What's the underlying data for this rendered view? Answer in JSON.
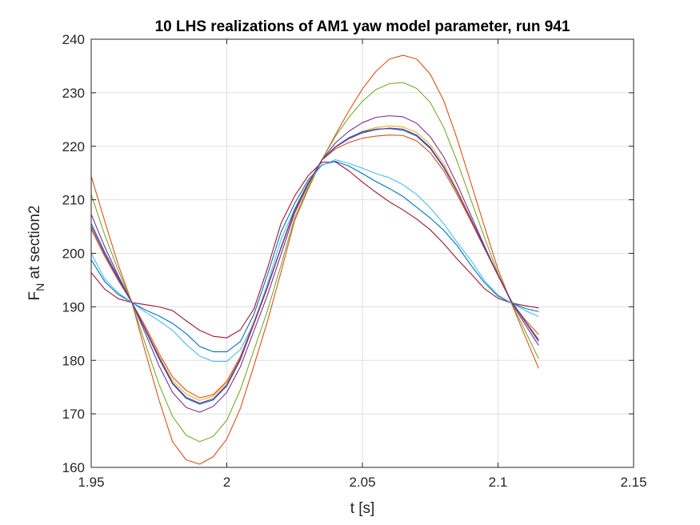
{
  "chart_data": {
    "type": "line",
    "title": "10 LHS realizations of AM1 yaw model parameter, run 941",
    "xlabel": "t [s]",
    "ylabel_main": "F",
    "ylabel_sub": "N",
    "ylabel_rest": " at section2",
    "xlim": [
      1.95,
      2.15
    ],
    "ylim": [
      160,
      240
    ],
    "xticks": [
      1.95,
      2.0,
      2.05,
      2.1,
      2.15
    ],
    "xtick_labels": [
      "1.95",
      "2",
      "2.05",
      "2.1",
      "2.15"
    ],
    "yticks": [
      160,
      170,
      180,
      190,
      200,
      210,
      220,
      230,
      240
    ],
    "ytick_labels": [
      "160",
      "170",
      "180",
      "190",
      "200",
      "210",
      "220",
      "230",
      "240"
    ],
    "grid": true,
    "legend": "none",
    "series": [
      {
        "color": "#D95319",
        "x": [
          1.95,
          1.955,
          1.96,
          1.965,
          1.97,
          1.975,
          1.98,
          1.985,
          1.99,
          1.995,
          2.0,
          2.005,
          2.01,
          2.015,
          2.02,
          2.025,
          2.03,
          2.035,
          2.04,
          2.045,
          2.05,
          2.055,
          2.06,
          2.065,
          2.07,
          2.075,
          2.08,
          2.085,
          2.09,
          2.095,
          2.1,
          2.105,
          2.11,
          2.115
        ],
        "y": [
          214.4,
          206.0,
          197.8,
          190.8,
          181.5,
          172.6,
          164.8,
          161.4,
          160.6,
          162.0,
          165.3,
          171.0,
          179.0,
          187.3,
          196.5,
          206.1,
          212.0,
          217.4,
          222.1,
          226.6,
          230.7,
          234.0,
          236.3,
          237.0,
          236.3,
          233.5,
          228.5,
          221.3,
          213.2,
          205.0,
          197.0,
          190.6,
          184.5,
          178.5
        ]
      },
      {
        "color": "#77AC30",
        "x": [
          1.95,
          1.955,
          1.96,
          1.965,
          1.97,
          1.975,
          1.98,
          1.985,
          1.99,
          1.995,
          2.0,
          2.005,
          2.01,
          2.015,
          2.02,
          2.025,
          2.03,
          2.035,
          2.04,
          2.045,
          2.05,
          2.055,
          2.06,
          2.065,
          2.07,
          2.075,
          2.08,
          2.085,
          2.09,
          2.095,
          2.1,
          2.105,
          2.11,
          2.115
        ],
        "y": [
          211.0,
          203.4,
          196.8,
          190.8,
          183.0,
          175.5,
          169.5,
          166.0,
          164.8,
          165.8,
          168.8,
          174.5,
          181.9,
          189.3,
          197.8,
          206.6,
          212.3,
          217.4,
          221.8,
          225.4,
          228.4,
          230.6,
          231.7,
          231.9,
          230.8,
          228.2,
          223.5,
          217.1,
          210.0,
          203.0,
          196.2,
          190.7,
          185.5,
          180.3
        ]
      },
      {
        "color": "#7E2F8E",
        "x": [
          1.95,
          1.955,
          1.96,
          1.965,
          1.97,
          1.975,
          1.98,
          1.985,
          1.99,
          1.995,
          2.0,
          2.005,
          2.01,
          2.015,
          2.02,
          2.025,
          2.03,
          2.035,
          2.04,
          2.045,
          2.05,
          2.055,
          2.06,
          2.065,
          2.07,
          2.075,
          2.08,
          2.085,
          2.09,
          2.095,
          2.1,
          2.105,
          2.11,
          2.115
        ],
        "y": [
          207.3,
          201.2,
          195.8,
          190.8,
          185.0,
          179.0,
          174.0,
          171.2,
          170.3,
          171.4,
          174.0,
          178.8,
          185.5,
          192.2,
          199.8,
          207.5,
          212.8,
          217.4,
          220.6,
          222.8,
          224.4,
          225.4,
          225.7,
          225.5,
          224.3,
          221.8,
          218.0,
          212.8,
          207.1,
          201.4,
          195.9,
          190.8,
          186.7,
          182.8
        ]
      },
      {
        "color": "#A2142F",
        "x": [
          1.95,
          1.955,
          1.96,
          1.965,
          1.97,
          1.975,
          1.98,
          1.985,
          1.99,
          1.995,
          2.0,
          2.005,
          2.01,
          2.015,
          2.02,
          2.025,
          2.03,
          2.035,
          2.04,
          2.045,
          2.05,
          2.055,
          2.06,
          2.065,
          2.07,
          2.075,
          2.08,
          2.085,
          2.09,
          2.095,
          2.1,
          2.105,
          2.11,
          2.115
        ],
        "y": [
          196.4,
          193.3,
          191.5,
          190.8,
          190.4,
          190.0,
          189.3,
          187.4,
          185.6,
          184.5,
          184.2,
          185.7,
          189.6,
          197.2,
          205.6,
          210.7,
          214.5,
          217.0,
          217.1,
          215.4,
          213.3,
          211.4,
          209.6,
          208.1,
          206.4,
          204.4,
          201.8,
          198.9,
          196.2,
          193.4,
          191.6,
          190.7,
          190.2,
          189.8
        ]
      },
      {
        "color": "#0072BD",
        "x": [
          1.95,
          1.955,
          1.96,
          1.965,
          1.97,
          1.975,
          1.98,
          1.985,
          1.99,
          1.995,
          2.0,
          2.005,
          2.01,
          2.015,
          2.02,
          2.025,
          2.03,
          2.035,
          2.04,
          2.045,
          2.05,
          2.055,
          2.06,
          2.065,
          2.07,
          2.075,
          2.08,
          2.085,
          2.09,
          2.095,
          2.1,
          2.105,
          2.11,
          2.115
        ],
        "y": [
          198.8,
          194.7,
          192.3,
          190.8,
          189.4,
          188.3,
          186.9,
          185.0,
          182.6,
          181.6,
          181.6,
          183.5,
          188.6,
          196.0,
          204.0,
          209.3,
          213.7,
          216.5,
          217.2,
          216.3,
          214.9,
          213.4,
          212.1,
          210.6,
          208.6,
          206.6,
          204.3,
          201.4,
          197.8,
          194.5,
          192.0,
          190.7,
          189.7,
          189.1
        ]
      },
      {
        "color": "#4DBEEE",
        "x": [
          1.95,
          1.955,
          1.96,
          1.965,
          1.97,
          1.975,
          1.98,
          1.985,
          1.99,
          1.995,
          2.0,
          2.005,
          2.01,
          2.015,
          2.02,
          2.025,
          2.03,
          2.035,
          2.04,
          2.045,
          2.05,
          2.055,
          2.06,
          2.065,
          2.07,
          2.075,
          2.08,
          2.085,
          2.09,
          2.095,
          2.1,
          2.105,
          2.11,
          2.115
        ],
        "y": [
          200.0,
          195.2,
          192.6,
          190.8,
          189.0,
          187.4,
          185.6,
          183.0,
          180.8,
          179.8,
          179.8,
          182.0,
          187.0,
          194.3,
          202.6,
          208.3,
          213.3,
          216.4,
          217.5,
          216.8,
          215.9,
          214.9,
          214.1,
          212.8,
          211.0,
          208.5,
          205.5,
          202.0,
          198.7,
          194.9,
          192.2,
          190.7,
          189.3,
          188.2
        ]
      },
      {
        "color": "#EDB120",
        "x": [
          1.95,
          1.955,
          1.96,
          1.965,
          1.97,
          1.975,
          1.98,
          1.985,
          1.99,
          1.995,
          2.0,
          2.005,
          2.01,
          2.015,
          2.02,
          2.025,
          2.03,
          2.035,
          2.04,
          2.045,
          2.05,
          2.055,
          2.06,
          2.065,
          2.07,
          2.075,
          2.08,
          2.085,
          2.09,
          2.095,
          2.1,
          2.105,
          2.11,
          2.115
        ],
        "y": [
          205.1,
          199.9,
          195.2,
          190.8,
          185.9,
          180.8,
          176.2,
          173.7,
          172.5,
          173.3,
          175.8,
          180.6,
          187.2,
          193.9,
          201.2,
          208.2,
          213.2,
          217.4,
          219.8,
          221.5,
          222.8,
          223.5,
          223.8,
          223.6,
          222.6,
          220.3,
          216.7,
          211.8,
          206.5,
          201.1,
          196.0,
          191.0,
          187.4,
          183.9
        ]
      },
      {
        "color": "#D95319",
        "x": [
          1.95,
          1.955,
          1.96,
          1.965,
          1.97,
          1.975,
          1.98,
          1.985,
          1.99,
          1.995,
          2.0,
          2.005,
          2.01,
          2.015,
          2.02,
          2.025,
          2.03,
          2.035,
          2.04,
          2.045,
          2.05,
          2.055,
          2.06,
          2.065,
          2.07,
          2.075,
          2.08,
          2.085,
          2.09,
          2.095,
          2.1,
          2.105,
          2.11,
          2.115
        ],
        "y": [
          204.5,
          199.4,
          194.9,
          190.8,
          186.3,
          181.3,
          176.9,
          174.4,
          173.0,
          173.6,
          176.1,
          180.7,
          187.1,
          193.8,
          201.0,
          207.9,
          212.9,
          217.4,
          219.5,
          220.7,
          221.5,
          221.9,
          222.1,
          222.0,
          221.0,
          218.8,
          215.4,
          210.9,
          206.0,
          200.9,
          195.8,
          190.9,
          187.6,
          184.8
        ]
      },
      {
        "color": "#0072BD",
        "x": [
          1.95,
          1.955,
          1.96,
          1.965,
          1.97,
          1.975,
          1.98,
          1.985,
          1.99,
          1.995,
          2.0,
          2.005,
          2.01,
          2.015,
          2.02,
          2.025,
          2.03,
          2.035,
          2.04,
          2.045,
          2.05,
          2.055,
          2.06,
          2.065,
          2.07,
          2.075,
          2.08,
          2.085,
          2.09,
          2.095,
          2.1,
          2.105,
          2.11,
          2.115
        ],
        "y": [
          205.6,
          200.2,
          195.5,
          190.8,
          185.6,
          180.3,
          175.6,
          172.9,
          171.8,
          172.6,
          175.2,
          180.1,
          186.8,
          193.6,
          201.0,
          208.0,
          213.0,
          217.4,
          219.9,
          221.6,
          222.7,
          223.2,
          223.3,
          223.0,
          221.9,
          219.6,
          216.0,
          211.4,
          206.3,
          201.1,
          196.0,
          191.0,
          187.3,
          183.8
        ]
      },
      {
        "color": "#7E2F8E",
        "x": [
          1.95,
          1.955,
          1.96,
          1.965,
          1.97,
          1.975,
          1.98,
          1.985,
          1.99,
          1.995,
          2.0,
          2.005,
          2.01,
          2.015,
          2.02,
          2.025,
          2.03,
          2.035,
          2.04,
          2.045,
          2.05,
          2.055,
          2.06,
          2.065,
          2.07,
          2.075,
          2.08,
          2.085,
          2.09,
          2.095,
          2.1,
          2.105,
          2.11,
          2.115
        ],
        "y": [
          205.0,
          199.8,
          195.2,
          190.8,
          185.8,
          180.6,
          175.8,
          173.1,
          172.0,
          172.8,
          175.4,
          180.3,
          186.9,
          193.7,
          201.1,
          208.1,
          213.1,
          217.4,
          219.8,
          221.4,
          222.5,
          223.1,
          223.4,
          223.2,
          222.1,
          219.8,
          216.2,
          211.5,
          206.4,
          201.2,
          196.0,
          191.0,
          187.2,
          183.5
        ]
      }
    ]
  }
}
